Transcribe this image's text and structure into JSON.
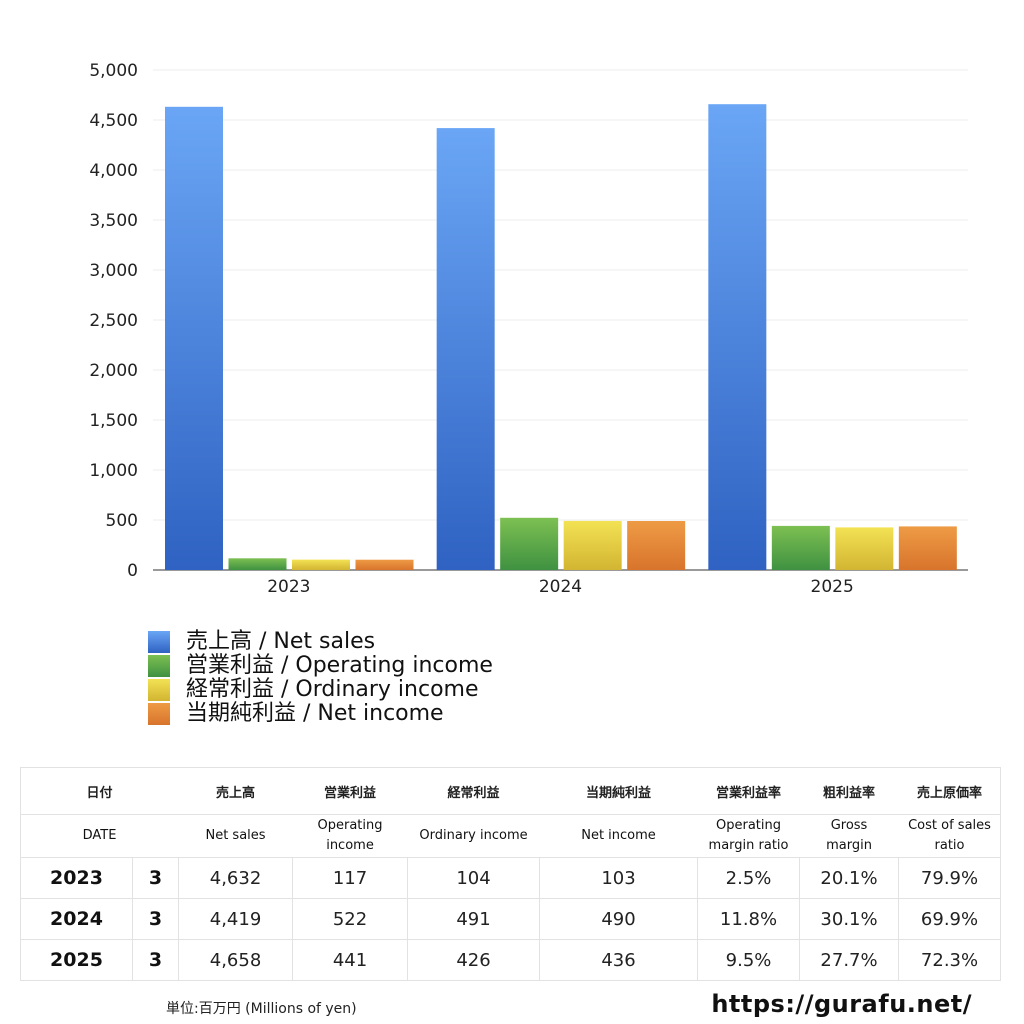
{
  "chart_data": {
    "type": "bar",
    "categories": [
      "2023",
      "2024",
      "2025"
    ],
    "ylim": [
      0,
      5000
    ],
    "yticks": [
      "0",
      "500",
      "1,000",
      "1,500",
      "2,000",
      "2,500",
      "3,000",
      "3,500",
      "4,000",
      "4,500",
      "5,000"
    ],
    "grid": true,
    "legend_position": "bottom-left",
    "series": [
      {
        "name": "売上高 / Net sales",
        "values": [
          4632,
          4419,
          4658
        ],
        "color_top": "#6aa6f5",
        "color_bottom": "#2f62c2"
      },
      {
        "name": "営業利益 / Operating income",
        "values": [
          117,
          522,
          441
        ],
        "color_top": "#7dc052",
        "color_bottom": "#3f9141"
      },
      {
        "name": "経常利益 / Ordinary income",
        "values": [
          104,
          491,
          426
        ],
        "color_top": "#f3e254",
        "color_bottom": "#d2b532"
      },
      {
        "name": "当期純利益 / Net income",
        "values": [
          103,
          490,
          436
        ],
        "color_top": "#ee9b45",
        "color_bottom": "#d8742c"
      }
    ]
  },
  "table": {
    "header_jp": [
      "日付",
      "",
      "売上高",
      "営業利益",
      "経常利益",
      "当期純利益",
      "営業利益率",
      "粗利益率",
      "売上原価率"
    ],
    "header_en": [
      "DATE",
      "",
      "Net sales",
      "Operating\nincome",
      "Ordinary income",
      "Net income",
      "Operating\nmargin ratio",
      "Gross\nmargin",
      "Cost of sales\nratio"
    ],
    "rows": [
      [
        "2023",
        "3",
        "4,632",
        "117",
        "104",
        "103",
        "2.5%",
        "20.1%",
        "79.9%"
      ],
      [
        "2024",
        "3",
        "4,419",
        "522",
        "491",
        "490",
        "11.8%",
        "30.1%",
        "69.9%"
      ],
      [
        "2025",
        "3",
        "4,658",
        "441",
        "426",
        "436",
        "9.5%",
        "27.7%",
        "72.3%"
      ]
    ]
  },
  "footer": {
    "unit": "単位:百万円 (Millions of yen)",
    "site": "https://gurafu.net/"
  }
}
